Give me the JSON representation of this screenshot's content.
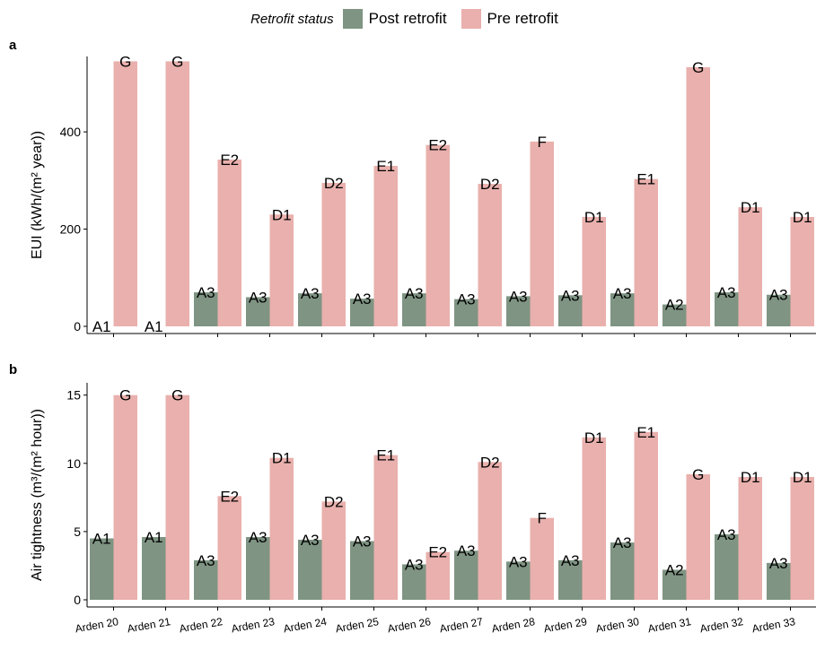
{
  "legend": {
    "title": "Retrofit status",
    "items": [
      {
        "label": "Post retrofit",
        "color": "#7f9483"
      },
      {
        "label": "Pre retrofit",
        "color": "#e9b0ad"
      }
    ]
  },
  "chart_data": [
    {
      "panel": "a",
      "type": "bar",
      "ylabel_html": "EUI (kWh/(m² year))",
      "ylim": [
        0,
        555
      ],
      "yticks": [
        0,
        200,
        400
      ],
      "categories": [
        "Arden 20",
        "Arden 21",
        "Arden 22",
        "Arden 23",
        "Arden 24",
        "Arden 25",
        "Arden 26",
        "Arden 27",
        "Arden 28",
        "Arden 29",
        "Arden 30",
        "Arden 31",
        "Arden 32",
        "Arden 33"
      ],
      "series": [
        {
          "name": "Post retrofit",
          "values": [
            0,
            0,
            70,
            60,
            68,
            57,
            68,
            56,
            62,
            64,
            68,
            45,
            70,
            65
          ],
          "labels": [
            "A1",
            "A1",
            "A3",
            "A3",
            "A3",
            "A3",
            "A3",
            "A3",
            "A3",
            "A3",
            "A3",
            "A2",
            "A3",
            "A3"
          ]
        },
        {
          "name": "Pre retrofit",
          "values": [
            545,
            545,
            343,
            230,
            295,
            330,
            373,
            293,
            380,
            225,
            303,
            533,
            245,
            225
          ],
          "labels": [
            "G",
            "G",
            "E2",
            "D1",
            "D2",
            "E1",
            "E2",
            "D2",
            "F",
            "D1",
            "E1",
            "G",
            "D1",
            "D1"
          ]
        }
      ]
    },
    {
      "panel": "b",
      "type": "bar",
      "ylabel_html": "Air tightness (m³/(m² hour))",
      "ylim": [
        0,
        15.9
      ],
      "yticks": [
        0,
        5,
        10,
        15
      ],
      "categories": [
        "Arden 20",
        "Arden 21",
        "Arden 22",
        "Arden 23",
        "Arden 24",
        "Arden 25",
        "Arden 26",
        "Arden 27",
        "Arden 28",
        "Arden 29",
        "Arden 30",
        "Arden 31",
        "Arden 32",
        "Arden 33"
      ],
      "series": [
        {
          "name": "Post retrofit",
          "values": [
            4.5,
            4.6,
            2.9,
            4.6,
            4.4,
            4.3,
            2.6,
            3.6,
            2.8,
            2.9,
            4.2,
            2.2,
            4.8,
            2.7
          ],
          "labels": [
            "A1",
            "A1",
            "A3",
            "A3",
            "A3",
            "A3",
            "A3",
            "A3",
            "A3",
            "A3",
            "A3",
            "A2",
            "A3",
            "A3"
          ]
        },
        {
          "name": "Pre retrofit",
          "values": [
            15,
            15,
            7.6,
            10.4,
            7.2,
            10.6,
            3.5,
            10.1,
            6.0,
            11.9,
            12.3,
            9.2,
            9.0,
            9.0
          ],
          "labels": [
            "G",
            "G",
            "E2",
            "D1",
            "D2",
            "E1",
            "E2",
            "D2",
            "F",
            "D1",
            "E1",
            "G",
            "D1",
            "D1"
          ]
        }
      ]
    }
  ]
}
